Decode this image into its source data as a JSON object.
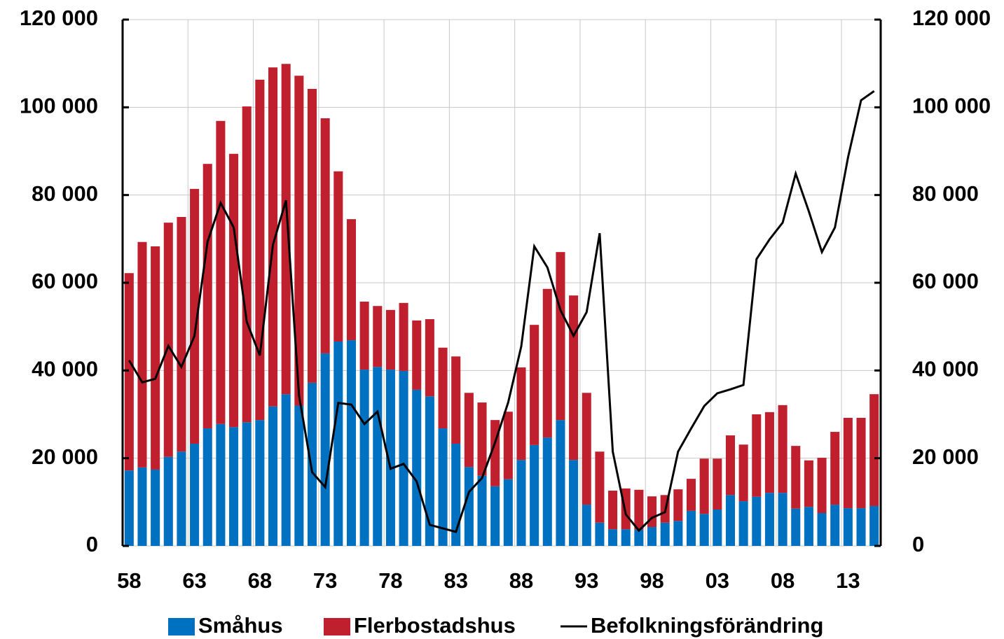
{
  "chart_data": {
    "type": "bar",
    "categories": [
      "58",
      null,
      null,
      null,
      null,
      "63",
      null,
      null,
      null,
      null,
      "68",
      null,
      null,
      null,
      null,
      "73",
      null,
      null,
      null,
      null,
      "78",
      null,
      null,
      null,
      null,
      "83",
      null,
      null,
      null,
      null,
      "88",
      null,
      null,
      null,
      null,
      "93",
      null,
      null,
      null,
      null,
      "98",
      null,
      null,
      null,
      null,
      "03",
      null,
      null,
      null,
      null,
      "08",
      null,
      null,
      null,
      null,
      "13",
      null,
      null
    ],
    "stacked": true,
    "series": [
      {
        "name": "Småhus",
        "color": "#0070c0",
        "type": "bar",
        "values": [
          17200,
          17900,
          17400,
          20300,
          21500,
          23300,
          26800,
          27800,
          27100,
          28200,
          28700,
          31800,
          34600,
          32000,
          37200,
          43900,
          46600,
          46900,
          40200,
          40800,
          40200,
          39900,
          35600,
          34100,
          26800,
          23300,
          18000,
          16000,
          13600,
          15200,
          19600,
          23000,
          24700,
          28700,
          19600,
          9400,
          5300,
          3800,
          3800,
          3700,
          4300,
          5300,
          5700,
          8000,
          7300,
          8300,
          11600,
          10200,
          11200,
          12100,
          12100,
          8500,
          8900,
          7500,
          9400,
          8600,
          8600,
          9100
        ]
      },
      {
        "name": "Flerbostadshus",
        "color": "#c0202e",
        "type": "bar",
        "values": [
          45000,
          51400,
          50900,
          53400,
          53500,
          58100,
          60300,
          69100,
          62300,
          72000,
          77600,
          77300,
          75300,
          75200,
          67000,
          53600,
          38800,
          27600,
          15500,
          13900,
          13600,
          15500,
          15800,
          17600,
          18400,
          19900,
          16900,
          16700,
          15100,
          15400,
          21100,
          27400,
          33900,
          38300,
          37500,
          25500,
          16200,
          8800,
          9300,
          9100,
          7000,
          6300,
          7200,
          7300,
          12600,
          11600,
          13600,
          12900,
          18800,
          18400,
          20000,
          14300,
          10600,
          12600,
          16600,
          20600,
          20600,
          25500
        ]
      },
      {
        "name": "Befolkningsförändring",
        "color": "#000000",
        "type": "line",
        "axis": "y2",
        "values": [
          42300,
          37300,
          38100,
          45600,
          40800,
          47900,
          69400,
          78200,
          72600,
          51100,
          43400,
          68600,
          78800,
          34300,
          16800,
          13400,
          32600,
          32200,
          27800,
          30600,
          17600,
          18700,
          14700,
          4800,
          4000,
          3200,
          12300,
          15500,
          23600,
          32700,
          45500,
          68300,
          63500,
          53800,
          47900,
          53300,
          71300,
          21500,
          7200,
          3500,
          6400,
          7700,
          21500,
          26800,
          31900,
          34800,
          35700,
          36700,
          65400,
          69900,
          73700,
          84900,
          76300,
          67000,
          72600,
          88600,
          101600,
          103700
        ]
      }
    ],
    "ylim": [
      0,
      120000
    ],
    "yticks": [
      0,
      {
        "value": 20000,
        "label": "20 000"
      },
      {
        "value": 40000,
        "label": "40 000"
      },
      {
        "value": 60000,
        "label": "60 000"
      },
      {
        "value": 80000,
        "label": "80 000"
      },
      {
        "value": 100000,
        "label": "100 000"
      },
      {
        "value": 120000,
        "label": "120 000"
      }
    ],
    "y2lim": [
      0,
      120000
    ],
    "y2ticks": [
      0,
      {
        "value": 20000,
        "label": "20 000"
      },
      {
        "value": 40000,
        "label": "40 000"
      },
      {
        "value": 60000,
        "label": "60 000"
      },
      {
        "value": 80000,
        "label": "80 000"
      },
      {
        "value": 100000,
        "label": "100 000"
      },
      {
        "value": 120000,
        "label": "120 000"
      }
    ],
    "grid": true,
    "legend": "bottom"
  }
}
